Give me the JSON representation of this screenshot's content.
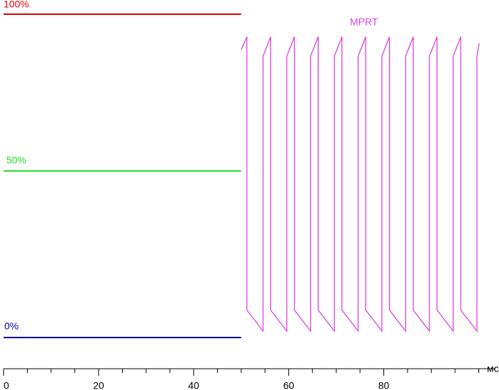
{
  "chart_data": {
    "type": "line",
    "x_label": "мс",
    "xlim": [
      0,
      103.5
    ],
    "xticks": [
      0,
      20,
      40,
      60,
      80
    ],
    "xminorticks": [
      5,
      10,
      15,
      25,
      30,
      35,
      45,
      50,
      55,
      65,
      70,
      75,
      85,
      90,
      95,
      100
    ],
    "ylim": [
      0,
      100
    ],
    "series": [
      {
        "name": "100%",
        "color": "#e00000",
        "x": [
          0,
          50
        ],
        "values": [
          100,
          100
        ]
      },
      {
        "name": "50%",
        "color": "#22dd22",
        "x": [
          0,
          50
        ],
        "values": [
          51.5,
          51.5
        ]
      },
      {
        "name": "0%",
        "color": "#0000a0",
        "x": [
          0,
          50
        ],
        "values": [
          0,
          0
        ]
      },
      {
        "name": "MPRT",
        "color": "#e040e0",
        "x": [
          50,
          51.2,
          51.2,
          54.6,
          54.6,
          56.2,
          56.2,
          59.6,
          59.6,
          61.2,
          61.2,
          64.6,
          64.6,
          66.2,
          66.2,
          69.6,
          69.6,
          71.2,
          71.2,
          74.6,
          74.6,
          76.2,
          76.2,
          79.6,
          79.6,
          81.2,
          81.2,
          84.6,
          84.6,
          86.2,
          86.2,
          89.6,
          89.6,
          91.2,
          91.2,
          94.6,
          94.6,
          96.2,
          96.2,
          99.6,
          99.6,
          100.1
        ],
        "values": [
          89,
          93,
          8.5,
          2,
          87,
          93,
          8.5,
          2,
          87,
          93,
          8.5,
          2,
          87,
          93,
          8.5,
          2,
          87,
          93,
          8.5,
          2,
          87,
          93,
          8.5,
          2,
          87,
          93,
          8.5,
          2,
          87,
          93,
          8.5,
          2,
          87,
          93,
          8.5,
          2,
          87,
          93,
          8.5,
          2,
          87,
          91
        ]
      }
    ]
  }
}
